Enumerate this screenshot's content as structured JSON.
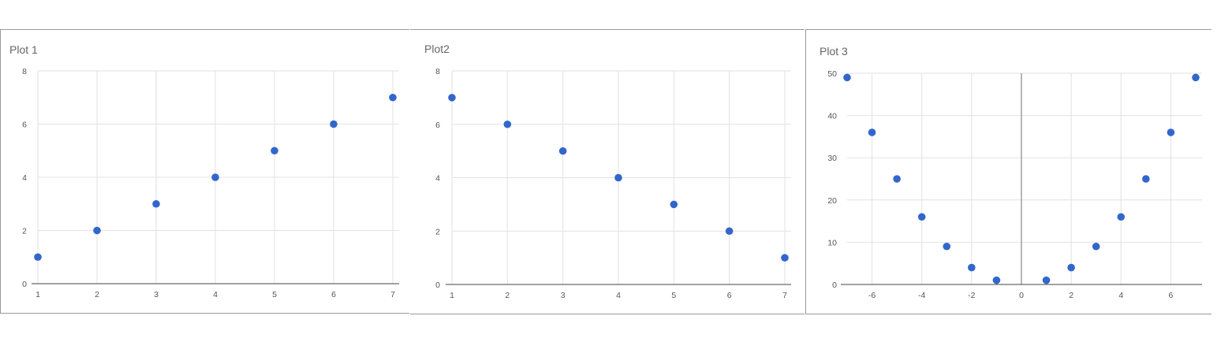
{
  "chart_data": [
    {
      "type": "scatter",
      "title": "Plot 1",
      "x": [
        1,
        2,
        3,
        4,
        5,
        6,
        7
      ],
      "y": [
        1,
        2,
        3,
        4,
        5,
        6,
        7
      ],
      "xlim": [
        1,
        7
      ],
      "ylim": [
        0,
        8
      ],
      "xticks": [
        1,
        2,
        3,
        4,
        5,
        6,
        7
      ],
      "yticks": [
        0,
        2,
        4,
        6,
        8
      ],
      "grid": true,
      "marker_color": "#3366cc"
    },
    {
      "type": "scatter",
      "title": "Plot2",
      "x": [
        1,
        2,
        3,
        4,
        5,
        6,
        7
      ],
      "y": [
        7,
        6,
        5,
        4,
        3,
        2,
        1
      ],
      "xlim": [
        1,
        7
      ],
      "ylim": [
        0,
        8
      ],
      "xticks": [
        1,
        2,
        3,
        4,
        5,
        6,
        7
      ],
      "yticks": [
        0,
        2,
        4,
        6,
        8
      ],
      "grid": true,
      "marker_color": "#3366cc"
    },
    {
      "type": "scatter",
      "title": "Plot 3",
      "x": [
        -7,
        -6,
        -5,
        -4,
        -3,
        -2,
        -1,
        1,
        2,
        3,
        4,
        5,
        6,
        7
      ],
      "y": [
        49,
        36,
        25,
        16,
        9,
        4,
        1,
        1,
        4,
        9,
        16,
        25,
        36,
        49
      ],
      "xlim": [
        -7,
        7
      ],
      "ylim": [
        0,
        50
      ],
      "xticks": [
        -6,
        -4,
        -2,
        0,
        2,
        4,
        6
      ],
      "yticks": [
        0,
        10,
        20,
        30,
        40,
        50
      ],
      "grid": true,
      "marker_color": "#3366cc"
    }
  ]
}
